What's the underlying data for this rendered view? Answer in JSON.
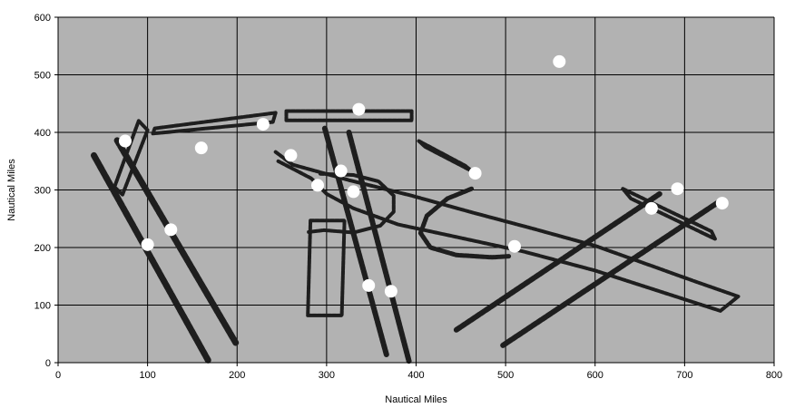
{
  "chart_data": {
    "type": "scatter",
    "title": "",
    "xlabel": "Nautical Miles",
    "ylabel": "Nautical Miles",
    "xlim": [
      0,
      800
    ],
    "ylim": [
      0,
      600
    ],
    "xticks": [
      0,
      100,
      200,
      300,
      400,
      500,
      600,
      700,
      800
    ],
    "yticks": [
      0,
      100,
      200,
      300,
      400,
      500,
      600
    ],
    "grid": true,
    "legend": "none",
    "colors": {
      "plot_background": "#b2b2b2",
      "grid": "#000000",
      "track": "#1e1e1e",
      "point": "#ffffff"
    },
    "series": [
      {
        "values": [
          {
            "x": 75,
            "y": 385
          },
          {
            "x": 160,
            "y": 373
          },
          {
            "x": 229,
            "y": 414
          },
          {
            "x": 260,
            "y": 360
          },
          {
            "x": 336,
            "y": 440
          },
          {
            "x": 560,
            "y": 523
          },
          {
            "x": 290,
            "y": 308
          },
          {
            "x": 316,
            "y": 333
          },
          {
            "x": 330,
            "y": 297
          },
          {
            "x": 466,
            "y": 329
          },
          {
            "x": 510,
            "y": 202
          },
          {
            "x": 100,
            "y": 205
          },
          {
            "x": 126,
            "y": 231
          },
          {
            "x": 347,
            "y": 134
          },
          {
            "x": 372,
            "y": 124
          },
          {
            "x": 663,
            "y": 268
          },
          {
            "x": 692,
            "y": 302
          },
          {
            "x": 742,
            "y": 277
          }
        ]
      }
    ],
    "tracks": [
      {
        "shape": "line",
        "width": 7,
        "points": [
          [
            40,
            360
          ],
          [
            168,
            3
          ]
        ]
      },
      {
        "shape": "line",
        "width": 7,
        "points": [
          [
            66,
            386
          ],
          [
            199,
            33
          ]
        ]
      },
      {
        "shape": "loop",
        "width": 4,
        "points": [
          [
            63,
            305
          ],
          [
            90,
            420
          ],
          [
            100,
            404
          ],
          [
            72,
            292
          ]
        ]
      },
      {
        "shape": "loop",
        "width": 4,
        "points": [
          [
            108,
            407
          ],
          [
            243,
            434
          ],
          [
            240,
            418
          ],
          [
            106,
            398
          ]
        ]
      },
      {
        "shape": "loop",
        "width": 4,
        "points": [
          [
            255,
            437
          ],
          [
            395,
            437
          ],
          [
            395,
            421
          ],
          [
            255,
            421
          ]
        ]
      },
      {
        "shape": "loop",
        "width": 4,
        "points": [
          [
            403,
            385
          ],
          [
            455,
            342
          ],
          [
            462,
            333
          ],
          [
            410,
            375
          ]
        ]
      },
      {
        "shape": "path",
        "width": 4,
        "points": [
          [
            243,
            366
          ],
          [
            262,
            344
          ],
          [
            325,
            317
          ],
          [
            395,
            290
          ],
          [
            460,
            262
          ],
          [
            530,
            233
          ],
          [
            600,
            203
          ],
          [
            660,
            170
          ],
          [
            710,
            142
          ],
          [
            760,
            115
          ],
          [
            740,
            90
          ],
          [
            680,
            120
          ],
          [
            600,
            160
          ],
          [
            520,
            193
          ],
          [
            440,
            220
          ],
          [
            380,
            240
          ],
          [
            330,
            268
          ],
          [
            300,
            293
          ],
          [
            283,
            320
          ],
          [
            246,
            350
          ]
        ]
      },
      {
        "shape": "loop",
        "width": 4,
        "points": [
          [
            282,
            247
          ],
          [
            279,
            82
          ],
          [
            317,
            82
          ],
          [
            320,
            247
          ]
        ]
      },
      {
        "shape": "path",
        "width": 4,
        "points": [
          [
            280,
            227
          ],
          [
            297,
            230
          ],
          [
            330,
            226
          ],
          [
            360,
            238
          ],
          [
            375,
            262
          ],
          [
            375,
            290
          ],
          [
            358,
            315
          ],
          [
            330,
            326
          ],
          [
            293,
            328
          ]
        ]
      },
      {
        "shape": "line",
        "width": 6,
        "points": [
          [
            298,
            407
          ],
          [
            367,
            13
          ]
        ]
      },
      {
        "shape": "line",
        "width": 6,
        "points": [
          [
            325,
            400
          ],
          [
            392,
            3
          ]
        ]
      },
      {
        "shape": "path",
        "width": 5,
        "points": [
          [
            462,
            302
          ],
          [
            435,
            285
          ],
          [
            412,
            255
          ],
          [
            405,
            225
          ],
          [
            416,
            200
          ],
          [
            445,
            187
          ],
          [
            485,
            183
          ],
          [
            505,
            185
          ]
        ]
      },
      {
        "shape": "line",
        "width": 6,
        "points": [
          [
            445,
            57
          ],
          [
            672,
            293
          ]
        ]
      },
      {
        "shape": "line",
        "width": 6,
        "points": [
          [
            497,
            30
          ],
          [
            736,
            277
          ]
        ]
      },
      {
        "shape": "loop",
        "width": 4,
        "points": [
          [
            631,
            302
          ],
          [
            730,
            228
          ],
          [
            734,
            215
          ],
          [
            640,
            285
          ]
        ]
      }
    ]
  }
}
